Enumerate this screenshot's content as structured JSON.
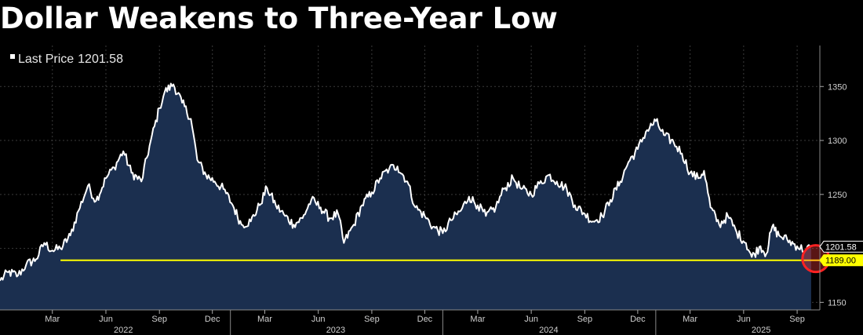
{
  "chart_data": {
    "type": "area",
    "title": "Dollar Weakens to Three-Year Low",
    "legend": {
      "label": "Last Price",
      "value": "1201.58",
      "placement": "top-left"
    },
    "y_axis": {
      "position": "right",
      "range": [
        1143,
        1388
      ],
      "ticks": [
        1150,
        1200,
        1250,
        1300,
        1350
      ],
      "tick_labels": [
        "1150",
        "",
        "1250",
        "1300",
        "1350"
      ]
    },
    "x_axis": {
      "months": [
        {
          "label": "Mar",
          "x": "2022-03-01"
        },
        {
          "label": "Jun",
          "x": "2022-06-01"
        },
        {
          "label": "Sep",
          "x": "2022-09-01"
        },
        {
          "label": "Dec",
          "x": "2022-12-01"
        },
        {
          "label": "Mar",
          "x": "2023-03-01"
        },
        {
          "label": "Jun",
          "x": "2023-06-01"
        },
        {
          "label": "Sep",
          "x": "2023-09-01"
        },
        {
          "label": "Dec",
          "x": "2023-12-01"
        },
        {
          "label": "Mar",
          "x": "2024-03-01"
        },
        {
          "label": "Jun",
          "x": "2024-06-01"
        },
        {
          "label": "Sep",
          "x": "2024-09-01"
        },
        {
          "label": "Dec",
          "x": "2024-12-01"
        },
        {
          "label": "Mar",
          "x": "2025-03-01"
        },
        {
          "label": "Jun",
          "x": "2025-06-01"
        },
        {
          "label": "Sep",
          "x": "2025-09-01"
        }
      ],
      "years": [
        {
          "label": "2022",
          "x": "2022-07-01"
        },
        {
          "label": "2023",
          "x": "2023-07-01"
        },
        {
          "label": "2024",
          "x": "2024-07-01"
        },
        {
          "label": "2025",
          "x": "2025-07-01"
        }
      ],
      "range": [
        "2021-12-01",
        "2025-10-10"
      ]
    },
    "grid": true,
    "series": [
      {
        "name": "Last Price",
        "color": "#ffffff",
        "fill": "#1b2f4f",
        "points": [
          [
            "2021-12-01",
            1170
          ],
          [
            "2021-12-15",
            1178
          ],
          [
            "2022-01-01",
            1175
          ],
          [
            "2022-01-15",
            1185
          ],
          [
            "2022-02-01",
            1190
          ],
          [
            "2022-02-15",
            1205
          ],
          [
            "2022-03-01",
            1198
          ],
          [
            "2022-03-15",
            1200
          ],
          [
            "2022-04-01",
            1212
          ],
          [
            "2022-04-15",
            1235
          ],
          [
            "2022-05-01",
            1258
          ],
          [
            "2022-05-15",
            1244
          ],
          [
            "2022-06-01",
            1265
          ],
          [
            "2022-06-15",
            1275
          ],
          [
            "2022-07-01",
            1290
          ],
          [
            "2022-07-15",
            1270
          ],
          [
            "2022-08-01",
            1262
          ],
          [
            "2022-08-15",
            1295
          ],
          [
            "2022-09-01",
            1330
          ],
          [
            "2022-09-10",
            1345
          ],
          [
            "2022-09-25",
            1352
          ],
          [
            "2022-10-10",
            1335
          ],
          [
            "2022-10-25",
            1320
          ],
          [
            "2022-11-05",
            1282
          ],
          [
            "2022-11-20",
            1268
          ],
          [
            "2022-12-05",
            1262
          ],
          [
            "2022-12-20",
            1255
          ],
          [
            "2023-01-05",
            1240
          ],
          [
            "2023-01-20",
            1222
          ],
          [
            "2023-02-05",
            1225
          ],
          [
            "2023-02-20",
            1240
          ],
          [
            "2023-03-05",
            1256
          ],
          [
            "2023-03-20",
            1240
          ],
          [
            "2023-04-05",
            1230
          ],
          [
            "2023-04-20",
            1222
          ],
          [
            "2023-05-05",
            1228
          ],
          [
            "2023-05-20",
            1245
          ],
          [
            "2023-06-05",
            1238
          ],
          [
            "2023-06-20",
            1228
          ],
          [
            "2023-07-05",
            1232
          ],
          [
            "2023-07-15",
            1205
          ],
          [
            "2023-08-01",
            1222
          ],
          [
            "2023-08-15",
            1240
          ],
          [
            "2023-09-01",
            1252
          ],
          [
            "2023-09-15",
            1265
          ],
          [
            "2023-10-01",
            1274
          ],
          [
            "2023-10-15",
            1276
          ],
          [
            "2023-11-01",
            1262
          ],
          [
            "2023-11-15",
            1238
          ],
          [
            "2023-12-01",
            1230
          ],
          [
            "2023-12-15",
            1220
          ],
          [
            "2024-01-01",
            1214
          ],
          [
            "2024-01-15",
            1226
          ],
          [
            "2024-02-01",
            1235
          ],
          [
            "2024-02-15",
            1248
          ],
          [
            "2024-03-01",
            1240
          ],
          [
            "2024-03-15",
            1230
          ],
          [
            "2024-04-01",
            1238
          ],
          [
            "2024-04-15",
            1255
          ],
          [
            "2024-05-01",
            1265
          ],
          [
            "2024-05-15",
            1255
          ],
          [
            "2024-06-01",
            1250
          ],
          [
            "2024-06-15",
            1260
          ],
          [
            "2024-07-01",
            1268
          ],
          [
            "2024-07-15",
            1262
          ],
          [
            "2024-08-01",
            1255
          ],
          [
            "2024-08-15",
            1240
          ],
          [
            "2024-09-01",
            1232
          ],
          [
            "2024-09-15",
            1225
          ],
          [
            "2024-10-01",
            1230
          ],
          [
            "2024-10-15",
            1245
          ],
          [
            "2024-11-01",
            1262
          ],
          [
            "2024-11-15",
            1280
          ],
          [
            "2024-12-01",
            1292
          ],
          [
            "2024-12-15",
            1308
          ],
          [
            "2025-01-01",
            1318
          ],
          [
            "2025-01-15",
            1305
          ],
          [
            "2025-02-01",
            1298
          ],
          [
            "2025-02-15",
            1288
          ],
          [
            "2025-03-01",
            1270
          ],
          [
            "2025-03-15",
            1265
          ],
          [
            "2025-03-25",
            1272
          ],
          [
            "2025-04-05",
            1238
          ],
          [
            "2025-04-20",
            1222
          ],
          [
            "2025-05-05",
            1230
          ],
          [
            "2025-05-20",
            1215
          ],
          [
            "2025-06-05",
            1205
          ],
          [
            "2025-06-15",
            1192
          ],
          [
            "2025-06-30",
            1202
          ],
          [
            "2025-07-10",
            1195
          ],
          [
            "2025-07-20",
            1220
          ],
          [
            "2025-08-01",
            1212
          ],
          [
            "2025-08-15",
            1208
          ],
          [
            "2025-09-01",
            1202
          ],
          [
            "2025-09-15",
            1198
          ],
          [
            "2025-09-25",
            1201.58
          ]
        ]
      }
    ],
    "labels": [
      {
        "text": "1201.58",
        "value": 1201.58,
        "bg": "#000000",
        "color": "#ffffff",
        "border": "#ffffff"
      },
      {
        "text": "1189.00",
        "value": 1189.0,
        "bg": "#ffff00",
        "color": "#000000",
        "border": "#ffff00"
      }
    ],
    "reference_line": {
      "value": 1189.0,
      "from": "2022-03-15",
      "to": "2025-10-10",
      "color": "#ffff00"
    },
    "highlight_marker": {
      "x": "2025-10-03",
      "value": 1190.5,
      "color": "#ff2222"
    }
  }
}
